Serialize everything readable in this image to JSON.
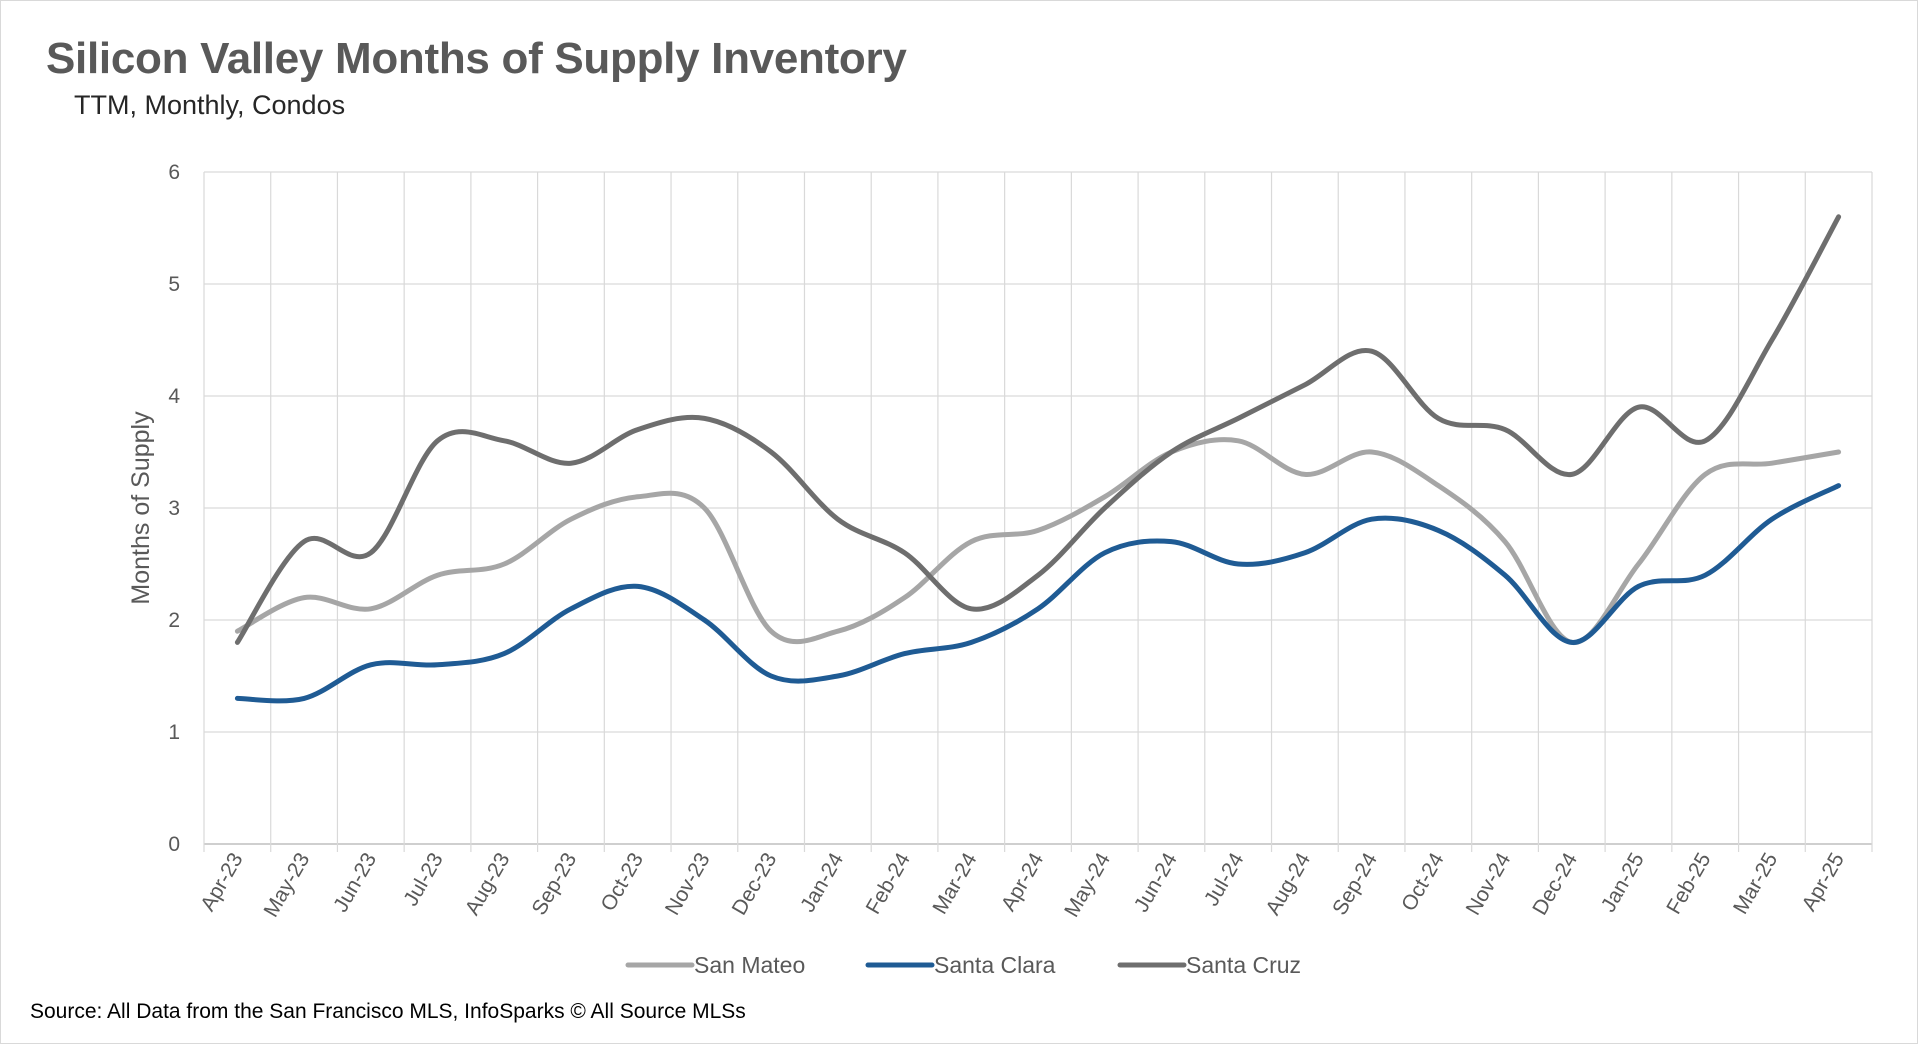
{
  "chart_data": {
    "type": "line",
    "title": "Silicon Valley Months of Supply Inventory",
    "subtitle": "TTM, Monthly, Condos",
    "ylabel": "Months of Supply",
    "xlabel": "",
    "ylim": [
      0,
      6
    ],
    "yticks": [
      "0",
      "1",
      "2",
      "3",
      "4",
      "5",
      "6"
    ],
    "grid": true,
    "legend_position": "bottom",
    "categories": [
      "Apr-23",
      "May-23",
      "Jun-23",
      "Jul-23",
      "Aug-23",
      "Sep-23",
      "Oct-23",
      "Nov-23",
      "Dec-23",
      "Jan-24",
      "Feb-24",
      "Mar-24",
      "Apr-24",
      "May-24",
      "Jun-24",
      "Jul-24",
      "Aug-24",
      "Sep-24",
      "Oct-24",
      "Nov-24",
      "Dec-24",
      "Jan-25",
      "Feb-25",
      "Mar-25",
      "Apr-25"
    ],
    "series": [
      {
        "name": "San Mateo",
        "color": "#a6a6a6",
        "values": [
          1.9,
          2.2,
          2.1,
          2.4,
          2.5,
          2.9,
          3.1,
          3.0,
          1.9,
          1.9,
          2.2,
          2.7,
          2.8,
          3.1,
          3.5,
          3.6,
          3.3,
          3.5,
          3.2,
          2.7,
          1.8,
          2.5,
          3.3,
          3.4,
          3.5
        ]
      },
      {
        "name": "Santa Clara",
        "color": "#1f5b94",
        "values": [
          1.3,
          1.3,
          1.6,
          1.6,
          1.7,
          2.1,
          2.3,
          2.0,
          1.5,
          1.5,
          1.7,
          1.8,
          2.1,
          2.6,
          2.7,
          2.5,
          2.6,
          2.9,
          2.8,
          2.4,
          1.8,
          2.3,
          2.4,
          2.9,
          3.2
        ]
      },
      {
        "name": "Santa Cruz",
        "color": "#6e6e6e",
        "values": [
          1.8,
          2.7,
          2.6,
          3.6,
          3.6,
          3.4,
          3.7,
          3.8,
          3.5,
          2.9,
          2.6,
          2.1,
          2.4,
          3.0,
          3.5,
          3.8,
          4.1,
          4.4,
          3.8,
          3.7,
          3.3,
          3.9,
          3.6,
          4.5,
          5.6
        ]
      }
    ]
  },
  "source": "Source: All Data from the San Francisco MLS, InfoSparks © All Source MLSs"
}
